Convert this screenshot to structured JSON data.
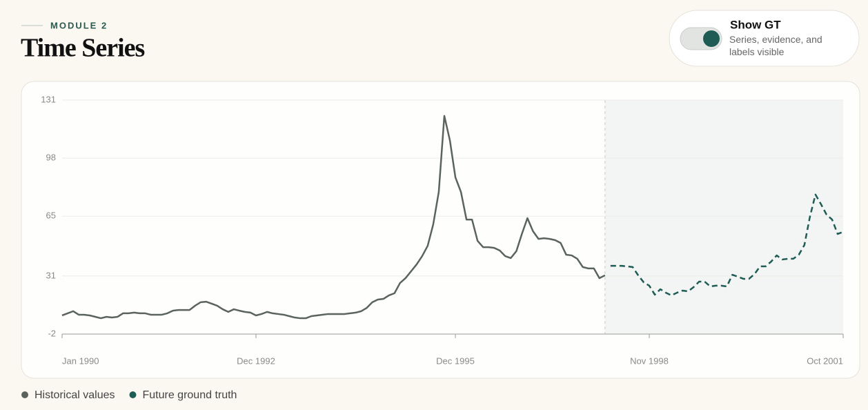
{
  "header": {
    "eyebrow": "MODULE 2",
    "title": "Time Series"
  },
  "toggle": {
    "label": "Show GT",
    "description": "Series, evidence, and labels visible",
    "on": true
  },
  "chart_data": {
    "type": "line",
    "x": [
      "1990-01",
      "1990-02",
      "1990-03",
      "1990-04",
      "1990-05",
      "1990-06",
      "1990-07",
      "1990-08",
      "1990-09",
      "1990-10",
      "1990-11",
      "1990-12",
      "1991-01",
      "1991-02",
      "1991-03",
      "1991-04",
      "1991-05",
      "1991-06",
      "1991-07",
      "1991-08",
      "1991-09",
      "1991-10",
      "1991-11",
      "1991-12",
      "1992-01",
      "1992-02",
      "1992-03",
      "1992-04",
      "1992-05",
      "1992-06",
      "1992-07",
      "1992-08",
      "1992-09",
      "1992-10",
      "1992-11",
      "1992-12",
      "1993-01",
      "1993-02",
      "1993-03",
      "1993-04",
      "1993-05",
      "1993-06",
      "1993-07",
      "1993-08",
      "1993-09",
      "1993-10",
      "1993-11",
      "1993-12",
      "1994-01",
      "1994-02",
      "1994-03",
      "1994-04",
      "1994-05",
      "1994-06",
      "1994-07",
      "1994-08",
      "1994-09",
      "1994-10",
      "1994-11",
      "1994-12",
      "1995-01",
      "1995-02",
      "1995-03",
      "1995-04",
      "1995-05",
      "1995-06",
      "1995-07",
      "1995-08",
      "1995-09",
      "1995-10",
      "1995-11",
      "1995-12",
      "1996-01",
      "1996-02",
      "1996-03",
      "1996-04",
      "1996-05",
      "1996-06",
      "1996-07",
      "1996-08",
      "1996-09",
      "1996-10",
      "1996-11",
      "1996-12",
      "1997-01",
      "1997-02",
      "1997-03",
      "1997-04",
      "1997-05",
      "1997-06",
      "1997-07",
      "1997-08",
      "1997-09",
      "1997-10",
      "1997-11",
      "1997-12",
      "1998-01",
      "1998-02",
      "1998-03",
      "1998-04",
      "1998-05",
      "1998-06",
      "1998-07",
      "1998-08",
      "1998-09",
      "1998-10",
      "1998-11",
      "1998-12",
      "1999-01",
      "1999-02",
      "1999-03",
      "1999-04",
      "1999-05",
      "1999-06",
      "1999-07",
      "1999-08",
      "1999-09",
      "1999-10",
      "1999-11",
      "1999-12",
      "2000-01",
      "2000-02",
      "2000-03",
      "2000-04",
      "2000-05",
      "2000-06",
      "2000-07",
      "2000-08",
      "2000-09",
      "2000-10",
      "2000-11",
      "2000-12",
      "2001-01",
      "2001-02",
      "2001-03",
      "2001-04",
      "2001-05",
      "2001-06",
      "2001-07",
      "2001-08",
      "2001-09",
      "2001-10"
    ],
    "series": [
      {
        "name": "Historical values",
        "color": "#5a635e",
        "dashed": false,
        "values": [
          8.6,
          9.8,
          11.0,
          9.0,
          9.0,
          8.6,
          7.8,
          7.0,
          7.8,
          7.4,
          7.8,
          9.8,
          9.8,
          10.2,
          9.8,
          9.8,
          9.0,
          9.0,
          9.0,
          9.8,
          11.3,
          11.7,
          11.7,
          11.7,
          14.1,
          16.1,
          16.4,
          15.3,
          14.1,
          12.1,
          10.6,
          12.1,
          11.3,
          10.6,
          10.2,
          8.6,
          9.4,
          10.6,
          9.8,
          9.4,
          9.0,
          8.2,
          7.4,
          7.0,
          7.0,
          8.2,
          8.6,
          9.0,
          9.4,
          9.4,
          9.4,
          9.4,
          9.8,
          10.2,
          11.0,
          12.9,
          16.1,
          17.6,
          18.0,
          20.0,
          21.2,
          27.0,
          29.8,
          33.7,
          37.6,
          42.3,
          48.2,
          60.4,
          78.8,
          122.0,
          108.2,
          87.1,
          78.8,
          63.1,
          63.1,
          51.0,
          47.4,
          47.4,
          47.0,
          45.5,
          42.3,
          41.2,
          45.1,
          54.9,
          63.9,
          56.5,
          52.1,
          52.5,
          52.1,
          51.4,
          49.8,
          43.1,
          42.7,
          40.8,
          36.1,
          35.3,
          35.3,
          29.8,
          31.4,
          null,
          null,
          null,
          null,
          null,
          null,
          null,
          null,
          null,
          null,
          null,
          null,
          null,
          null,
          null,
          null,
          null,
          null,
          null,
          null,
          null,
          null,
          null,
          null,
          null,
          null,
          null,
          null,
          null,
          null,
          null,
          null,
          null,
          null,
          null,
          null,
          null,
          null,
          null,
          null,
          null,
          null,
          null
        ]
      },
      {
        "name": "Future ground truth",
        "color": "#1f5c55",
        "dashed": true,
        "values": [
          null,
          null,
          null,
          null,
          null,
          null,
          null,
          null,
          null,
          null,
          null,
          null,
          null,
          null,
          null,
          null,
          null,
          null,
          null,
          null,
          null,
          null,
          null,
          null,
          null,
          null,
          null,
          null,
          null,
          null,
          null,
          null,
          null,
          null,
          null,
          null,
          null,
          null,
          null,
          null,
          null,
          null,
          null,
          null,
          null,
          null,
          null,
          null,
          null,
          null,
          null,
          null,
          null,
          null,
          null,
          null,
          null,
          null,
          null,
          null,
          null,
          null,
          null,
          null,
          null,
          null,
          null,
          null,
          null,
          null,
          null,
          null,
          null,
          null,
          null,
          null,
          null,
          null,
          null,
          null,
          null,
          null,
          null,
          null,
          null,
          null,
          null,
          null,
          null,
          null,
          null,
          null,
          null,
          null,
          null,
          null,
          null,
          null,
          null,
          36.8,
          36.8,
          36.8,
          36.5,
          36.1,
          31.4,
          27.4,
          25.5,
          20.4,
          23.5,
          21.5,
          20.0,
          21.5,
          22.7,
          22.3,
          24.7,
          27.8,
          27.8,
          25.1,
          25.5,
          25.5,
          25.1,
          31.7,
          30.6,
          29.4,
          29.4,
          32.1,
          36.5,
          36.5,
          39.2,
          42.7,
          40.4,
          40.8,
          40.8,
          43.1,
          48.6,
          64.7,
          77.3,
          71.8,
          65.9,
          63.1,
          54.9,
          56.1
        ]
      }
    ],
    "forecast_start": "1998-03",
    "xlim": [
      "1990-01",
      "2001-10"
    ],
    "xticks": [
      {
        "value": "1990-01",
        "label": "Jan 1990"
      },
      {
        "value": "1992-12",
        "label": "Dec 1992"
      },
      {
        "value": "1995-12",
        "label": "Dec 1995"
      },
      {
        "value": "1998-11",
        "label": "Nov 1998"
      },
      {
        "value": "2001-10",
        "label": "Oct 2001"
      }
    ],
    "ylim": [
      -2,
      131
    ],
    "yticks": [
      -2,
      31,
      65,
      98,
      131
    ],
    "grid": true
  }
}
